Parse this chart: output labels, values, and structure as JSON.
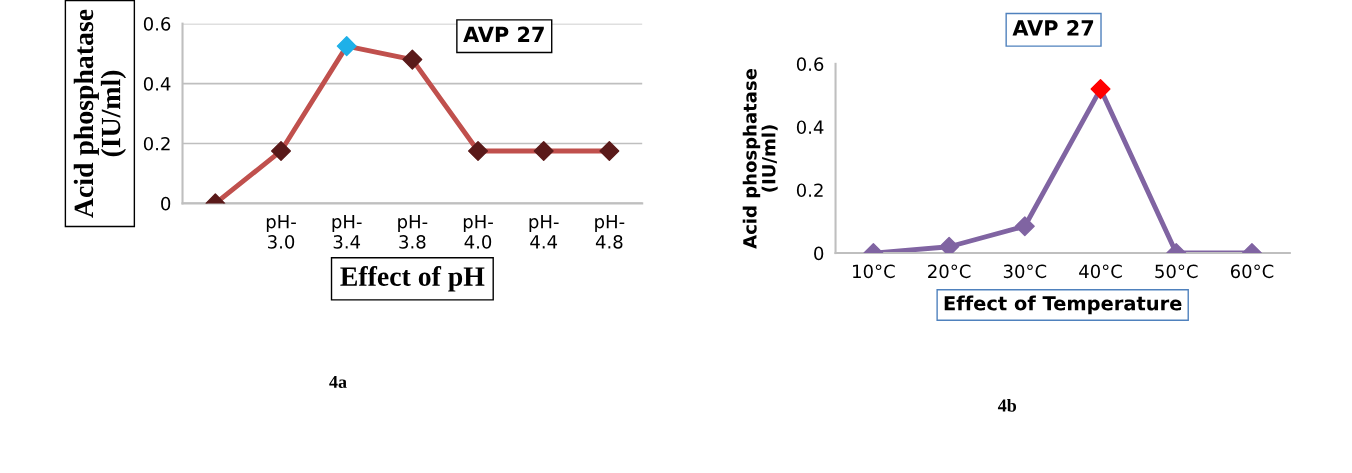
{
  "chart_data": [
    {
      "type": "line",
      "title": "AVP 27",
      "xlabel": "Effect of pH",
      "ylabel": "Acid phosphatase\n(IU/ml)",
      "categories": [
        null,
        "pH-\n3.0",
        "pH-\n3.4",
        "pH-\n3.8",
        "pH-\n4.0",
        "pH-\n4.4",
        "pH-\n4.8"
      ],
      "values": [
        0,
        0.175,
        0.525,
        0.48,
        0.175,
        0.175,
        0.175
      ],
      "color": "#c0504d",
      "colors": [
        "#5a1a1a",
        "#5a1a1a",
        "#1fb0e8",
        "#5a1a1a",
        "#5a1a1a",
        "#5a1a1a",
        "#5a1a1a"
      ],
      "marker": "diamond",
      "ylim": [
        0,
        0.6
      ],
      "yticks": [
        0,
        0.2,
        0.4,
        0.6
      ],
      "grid": "y",
      "annotations": [
        "4a"
      ]
    },
    {
      "type": "line",
      "title": "AVP 27",
      "xlabel": "Effect of Temperature",
      "ylabel": "Acid phosphatase\n(IU/ml)",
      "categories": [
        "10°C",
        "20°C",
        "30°C",
        "40°C",
        "50°C",
        "60°C"
      ],
      "values": [
        0,
        0.02,
        0.085,
        0.52,
        0,
        0
      ],
      "color": "#8064a2",
      "colors": [
        "#8064a2",
        "#8064a2",
        "#8064a2",
        "#ff0000",
        "#8064a2",
        "#8064a2"
      ],
      "marker": "diamond",
      "ylim": [
        0,
        0.6
      ],
      "yticks": [
        0,
        0.2,
        0.4,
        0.6
      ],
      "annotations": [
        "4b"
      ]
    }
  ]
}
